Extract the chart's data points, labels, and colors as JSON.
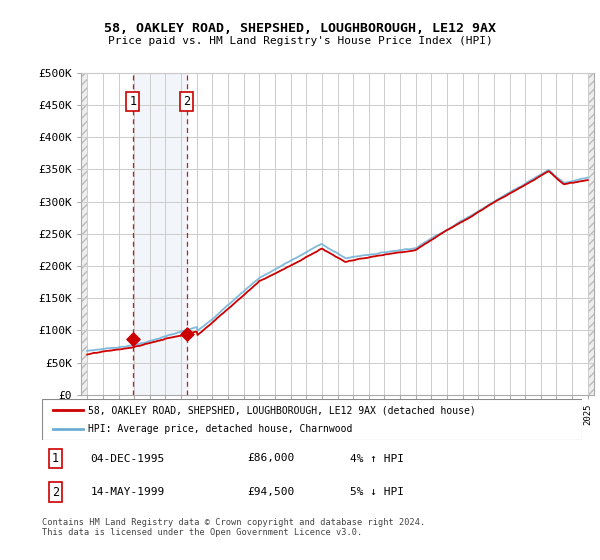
{
  "title": "58, OAKLEY ROAD, SHEPSHED, LOUGHBOROUGH, LE12 9AX",
  "subtitle": "Price paid vs. HM Land Registry's House Price Index (HPI)",
  "ylabel_ticks": [
    "£0",
    "£50K",
    "£100K",
    "£150K",
    "£200K",
    "£250K",
    "£300K",
    "£350K",
    "£400K",
    "£450K",
    "£500K"
  ],
  "ytick_vals": [
    0,
    50000,
    100000,
    150000,
    200000,
    250000,
    300000,
    350000,
    400000,
    450000,
    500000
  ],
  "ylim": [
    0,
    500000
  ],
  "xlim_start": 1992.6,
  "xlim_end": 2025.4,
  "hpi_color": "#6baed6",
  "price_color": "#cc0000",
  "transaction1": {
    "label": "1",
    "date": "04-DEC-1995",
    "price": 86000,
    "year": 1995.92,
    "pct": "4%",
    "dir": "↑"
  },
  "transaction2": {
    "label": "2",
    "date": "14-MAY-1999",
    "price": 94500,
    "year": 1999.37,
    "pct": "5%",
    "dir": "↓"
  },
  "legend_line1": "58, OAKLEY ROAD, SHEPSHED, LOUGHBOROUGH, LE12 9AX (detached house)",
  "legend_line2": "HPI: Average price, detached house, Charnwood",
  "footer": "Contains HM Land Registry data © Crown copyright and database right 2024.\nThis data is licensed under the Open Government Licence v3.0."
}
